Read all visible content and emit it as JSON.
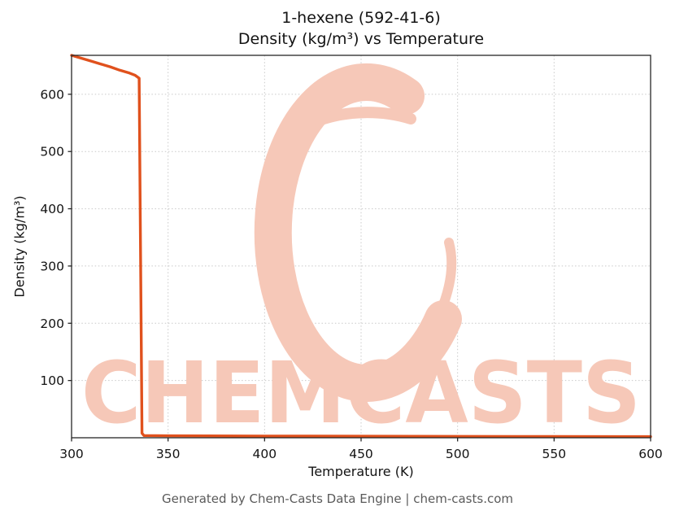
{
  "title_lines": [
    "1-hexene (592-41-6)",
    "Density (kg/m³) vs Temperature"
  ],
  "footer_text": "Generated by Chem-Casts Data Engine | chem-casts.com",
  "watermark": {
    "text": "CHEMCASTS",
    "color": "#f6c8b8"
  },
  "chart_data": {
    "type": "line",
    "title": "1-hexene (592-41-6) Density (kg/m³) vs Temperature",
    "xlabel": "Temperature (K)",
    "ylabel": "Density (kg/m³)",
    "xlim": [
      300,
      600
    ],
    "ylim": [
      0,
      668
    ],
    "x_ticks": [
      300,
      350,
      400,
      450,
      500,
      550,
      600
    ],
    "y_ticks": [
      100,
      200,
      300,
      400,
      500,
      600
    ],
    "grid": true,
    "grid_style": "dotted",
    "legend": "none",
    "line_color": "#e0511d",
    "series": [
      {
        "x": [
          300,
          305,
          310,
          315,
          320,
          325,
          330,
          333,
          335,
          336.5,
          337.5,
          350,
          400,
          450,
          500,
          550,
          600
        ],
        "y": [
          668,
          663,
          658,
          653,
          648,
          642,
          637,
          633,
          628,
          8,
          3.8,
          3.4,
          3.0,
          2.7,
          2.4,
          2.2,
          2.0
        ]
      }
    ]
  }
}
